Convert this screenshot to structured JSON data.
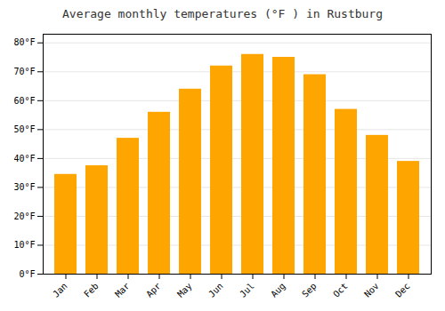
{
  "chart_data": {
    "type": "bar",
    "title": "Average monthly temperatures (°F ) in Rustburg",
    "categories": [
      "Jan",
      "Feb",
      "Mar",
      "Apr",
      "May",
      "Jun",
      "Jul",
      "Aug",
      "Sep",
      "Oct",
      "Nov",
      "Dec"
    ],
    "values": [
      34.5,
      37.5,
      47,
      56,
      64,
      72,
      76,
      75,
      69,
      57,
      48,
      39
    ],
    "color": "#FFA500",
    "ylim": [
      0,
      83
    ],
    "yticks": [
      {
        "value": 0,
        "label": "0°F"
      },
      {
        "value": 10,
        "label": "10°F"
      },
      {
        "value": 20,
        "label": "20°F"
      },
      {
        "value": 30,
        "label": "30°F"
      },
      {
        "value": 40,
        "label": "40°F"
      },
      {
        "value": 50,
        "label": "50°F"
      },
      {
        "value": 60,
        "label": "60°F"
      },
      {
        "value": 70,
        "label": "70°F"
      },
      {
        "value": 80,
        "label": "80°F"
      }
    ],
    "grid": true
  }
}
